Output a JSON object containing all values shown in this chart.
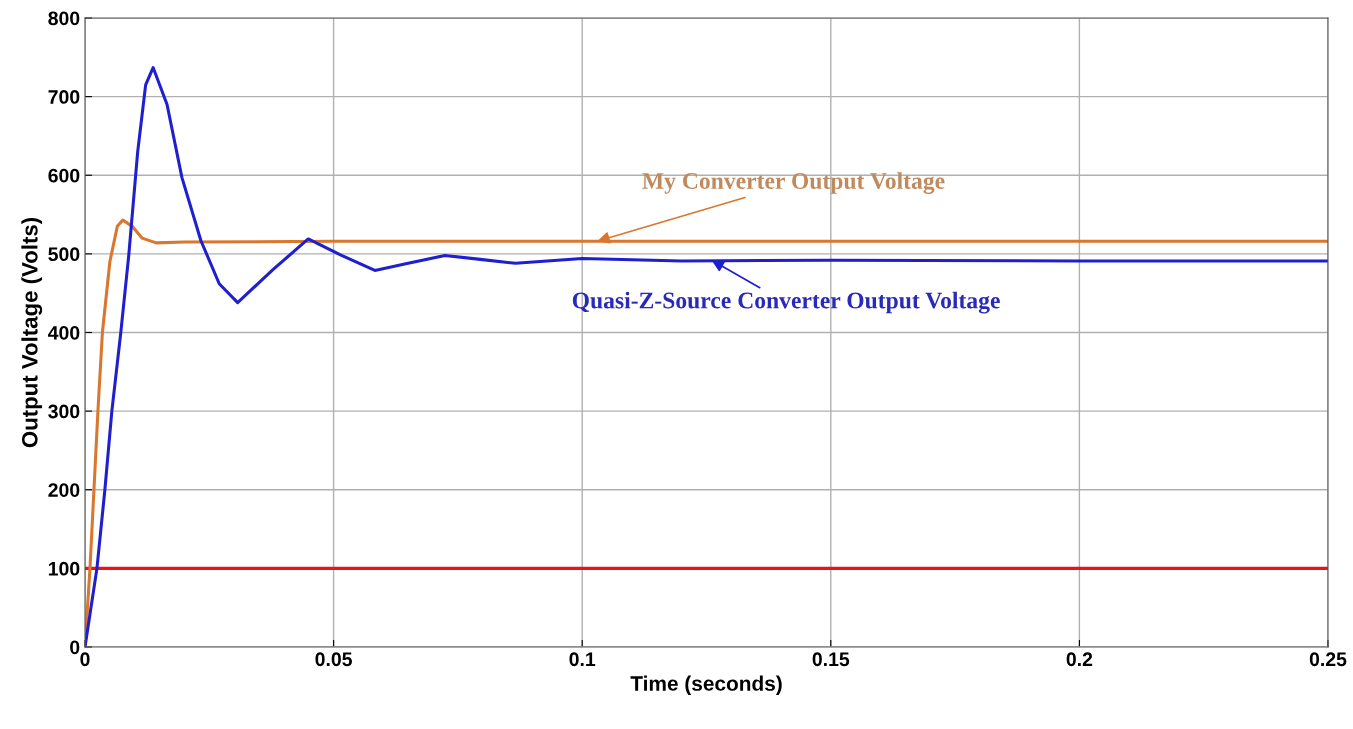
{
  "chart_data": {
    "type": "line",
    "xlabel": "Time (seconds)",
    "ylabel": "Output Voltage (Volts)",
    "xlim": [
      0,
      0.25
    ],
    "ylim": [
      0,
      800
    ],
    "xticks": [
      0,
      0.05,
      0.1,
      0.15,
      0.2,
      0.25
    ],
    "yticks": [
      0,
      100,
      200,
      300,
      400,
      500,
      600,
      700,
      800
    ],
    "grid": true,
    "legend": false,
    "line_style": "solid",
    "marker": "none",
    "series": [
      {
        "color": "#e8141a",
        "x": [
          0,
          0.25
        ],
        "values": [
          100,
          100
        ]
      },
      {
        "color": "#d9772e",
        "x": [
          0,
          0.001,
          0.0026,
          0.0035,
          0.005,
          0.0065,
          0.0076,
          0.0095,
          0.0115,
          0.0143,
          0.02,
          0.05,
          0.1,
          0.15,
          0.2,
          0.25
        ],
        "values": [
          0,
          100,
          300,
          400,
          490,
          535,
          543,
          535,
          520,
          514,
          515,
          516,
          516,
          516,
          516,
          516
        ]
      },
      {
        "color": "#1f1fd0",
        "x": [
          0,
          0.0024,
          0.004,
          0.0054,
          0.0072,
          0.0088,
          0.0106,
          0.0122,
          0.0137,
          0.0165,
          0.0195,
          0.0233,
          0.027,
          0.0307,
          0.0378,
          0.0449,
          0.0516,
          0.0583,
          0.065,
          0.0724,
          0.0795,
          0.0866,
          0.1,
          0.12,
          0.15,
          0.2,
          0.25
        ],
        "values": [
          0,
          100,
          200,
          300,
          400,
          498,
          630,
          715,
          737,
          690,
          597,
          517,
          462,
          438,
          480,
          519,
          498,
          479,
          488,
          498,
          493,
          488,
          494,
          491,
          492,
          491,
          491
        ]
      }
    ],
    "annotations": [
      {
        "text": "My Converter Output Voltage",
        "x": 0.103,
        "y": 516
      },
      {
        "text": "Quasi-Z-Source Converter Output Voltage",
        "x": 0.126,
        "y": 492
      }
    ]
  }
}
